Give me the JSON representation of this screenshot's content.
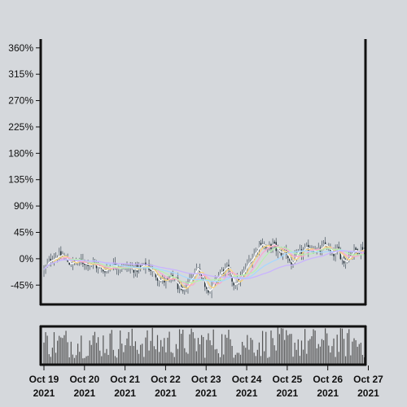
{
  "chart_data": {
    "type": "candlestick",
    "y_unit": "percent change",
    "y_ticks": [
      "360%",
      "315%",
      "270%",
      "225%",
      "180%",
      "135%",
      "90%",
      "45%",
      "0%",
      "-45%"
    ],
    "y_tick_values": [
      360,
      315,
      270,
      225,
      180,
      135,
      90,
      45,
      0,
      -45
    ],
    "ylim": [
      -78,
      375
    ],
    "x_ticks": [
      {
        "line1": "Oct 19",
        "line2": "2021"
      },
      {
        "line1": "Oct 20",
        "line2": "2021"
      },
      {
        "line1": "Oct 21",
        "line2": "2021"
      },
      {
        "line1": "Oct 22",
        "line2": "2021"
      },
      {
        "line1": "Oct 23",
        "line2": "2021"
      },
      {
        "line1": "Oct 24",
        "line2": "2021"
      },
      {
        "line1": "Oct 25",
        "line2": "2021"
      },
      {
        "line1": "Oct 26",
        "line2": "2021"
      },
      {
        "line1": "Oct 27",
        "line2": "2021"
      }
    ],
    "x_range_days": [
      -0.08,
      7.93
    ],
    "close_path": [
      [
        0.0,
        -20
      ],
      [
        0.2,
        3
      ],
      [
        0.45,
        5
      ],
      [
        0.65,
        -8
      ],
      [
        0.9,
        -5
      ],
      [
        1.2,
        -8
      ],
      [
        1.45,
        -20
      ],
      [
        1.7,
        -10
      ],
      [
        2.0,
        -15
      ],
      [
        2.3,
        -18
      ],
      [
        2.55,
        -12
      ],
      [
        2.85,
        -35
      ],
      [
        3.05,
        -40
      ],
      [
        3.2,
        -30
      ],
      [
        3.4,
        -62
      ],
      [
        3.6,
        -35
      ],
      [
        3.8,
        -12
      ],
      [
        3.95,
        -42
      ],
      [
        4.1,
        -55
      ],
      [
        4.3,
        -28
      ],
      [
        4.5,
        -15
      ],
      [
        4.7,
        -45
      ],
      [
        4.9,
        -28
      ],
      [
        5.05,
        -5
      ],
      [
        5.2,
        10
      ],
      [
        5.35,
        30
      ],
      [
        5.5,
        15
      ],
      [
        5.65,
        25
      ],
      [
        5.8,
        8
      ],
      [
        5.95,
        15
      ],
      [
        6.1,
        -10
      ],
      [
        6.3,
        10
      ],
      [
        6.45,
        15
      ],
      [
        6.6,
        20
      ],
      [
        6.8,
        12
      ],
      [
        6.95,
        25
      ],
      [
        7.1,
        5
      ],
      [
        7.25,
        15
      ],
      [
        7.4,
        -5
      ],
      [
        7.6,
        12
      ],
      [
        7.75,
        15
      ],
      [
        7.9,
        18
      ]
    ],
    "candle_count": 190,
    "moving_averages": [
      {
        "color": "#ffffff",
        "period": 3
      },
      {
        "color": "#f7d27a",
        "period": 6
      },
      {
        "color": "#f9a7d3",
        "period": 10
      },
      {
        "color": "#b6f0b0",
        "period": 15
      },
      {
        "color": "#a7d8ff",
        "period": 28
      },
      {
        "color": "#c9b3ff",
        "period": 55
      }
    ],
    "colors": {
      "background": "#d5d8dc",
      "up_candle": "#9aa2a8",
      "down_candle": "#1f2b33",
      "wick": "#55606a",
      "volume_bar": "#555555",
      "axis": "#111111"
    },
    "grid": false,
    "legend": "none",
    "volume_panel": true
  }
}
